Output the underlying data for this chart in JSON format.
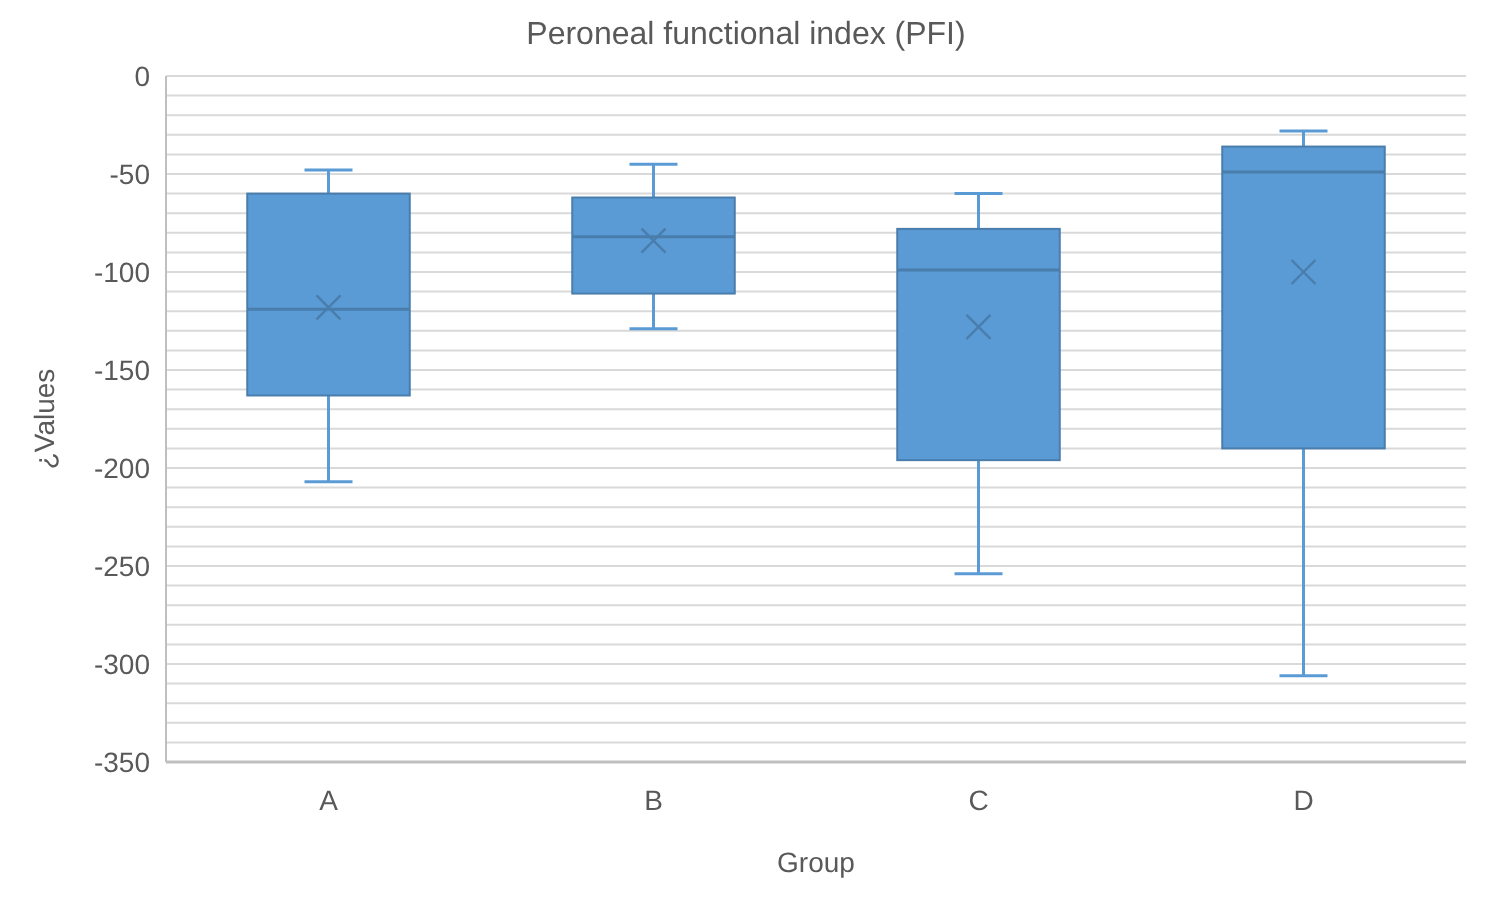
{
  "chart_data": {
    "type": "box",
    "title": "Peroneal functional index (PFI)",
    "xlabel": "Group",
    "ylabel": "¿Values",
    "categories": [
      "A",
      "B",
      "C",
      "D"
    ],
    "boxes": [
      {
        "low": -207,
        "q1": -163,
        "median": -119,
        "q3": -60,
        "high": -48,
        "mean": -118
      },
      {
        "low": -129,
        "q1": -111,
        "median": -82,
        "q3": -62,
        "high": -45,
        "mean": -84
      },
      {
        "low": -254,
        "q1": -196,
        "median": -99,
        "q3": -78,
        "high": -60,
        "mean": -128
      },
      {
        "low": -306,
        "q1": -190,
        "median": -49,
        "q3": -36,
        "high": -28,
        "mean": -100
      }
    ],
    "color": "#5b9bd5",
    "ylim": [
      -350,
      0
    ],
    "yticks": [
      0,
      -50,
      -100,
      -150,
      -200,
      -250,
      -300,
      -350
    ],
    "grid": true
  }
}
